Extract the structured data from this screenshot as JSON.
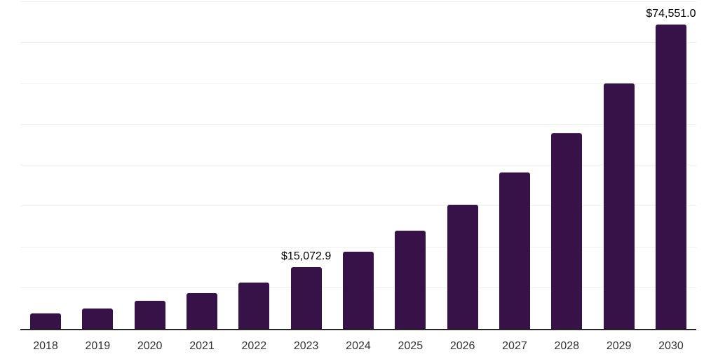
{
  "chart_data": {
    "type": "bar",
    "title": "",
    "xlabel": "",
    "ylabel": "",
    "categories": [
      "2018",
      "2019",
      "2020",
      "2021",
      "2022",
      "2023",
      "2024",
      "2025",
      "2026",
      "2027",
      "2028",
      "2029",
      "2030"
    ],
    "values": [
      3800,
      4950,
      6800,
      8800,
      11300,
      15072.9,
      18950,
      24000,
      30400,
      38300,
      47900,
      60100,
      74551.0
    ],
    "value_labels": [
      "",
      "",
      "",
      "",
      "",
      "$15,072.9",
      "",
      "",
      "",
      "",
      "",
      "",
      "$74,551.0"
    ],
    "ylim": [
      0,
      80000
    ],
    "gridline_interval": 10000,
    "grid": "horizontal",
    "legend_position": "none"
  },
  "colors": {
    "bar": "#371249",
    "axis": "#262626",
    "gridline": "#efefef",
    "tick_label": "#333333",
    "value_label": "#000000",
    "background": "#ffffff"
  }
}
